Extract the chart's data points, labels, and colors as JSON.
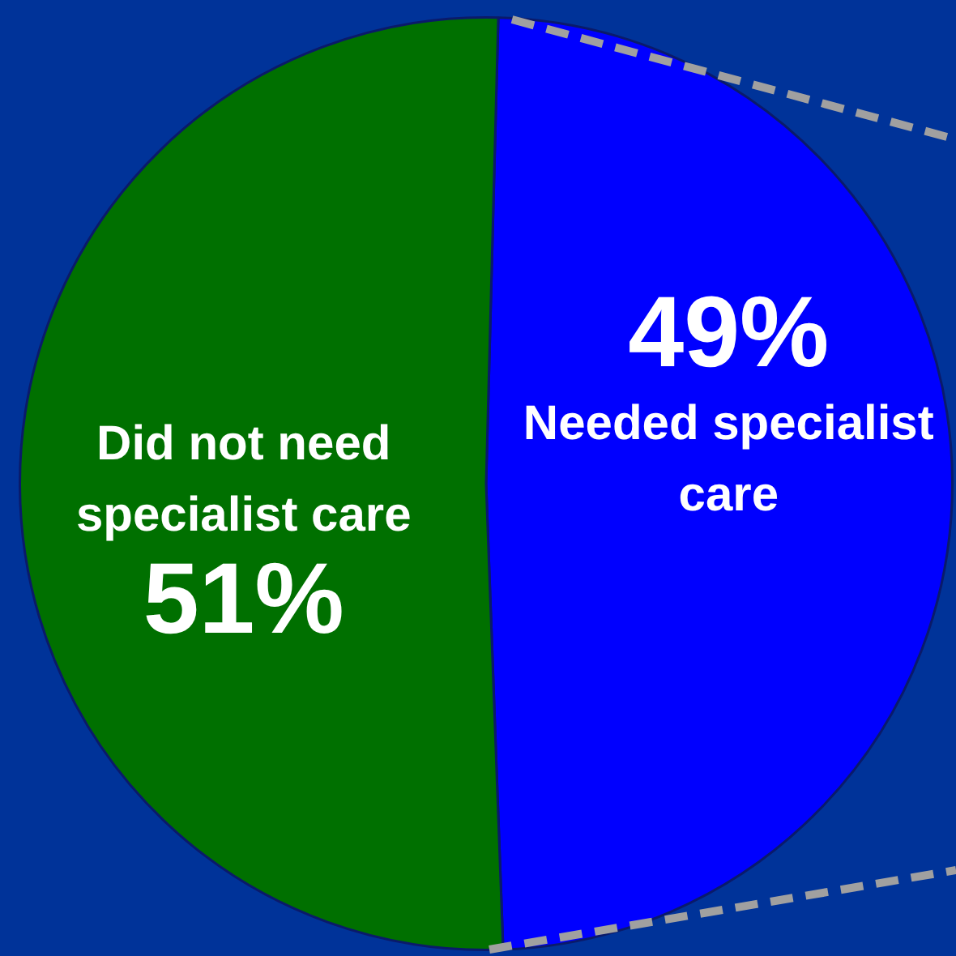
{
  "chart_data": {
    "type": "pie",
    "categories": [
      "Needed specialist care",
      "Did not need specialist care"
    ],
    "values": [
      49,
      51
    ],
    "colors": [
      "#0000ff",
      "#007000"
    ],
    "value_labels": [
      "49%",
      "51%"
    ],
    "legend": false
  }
}
